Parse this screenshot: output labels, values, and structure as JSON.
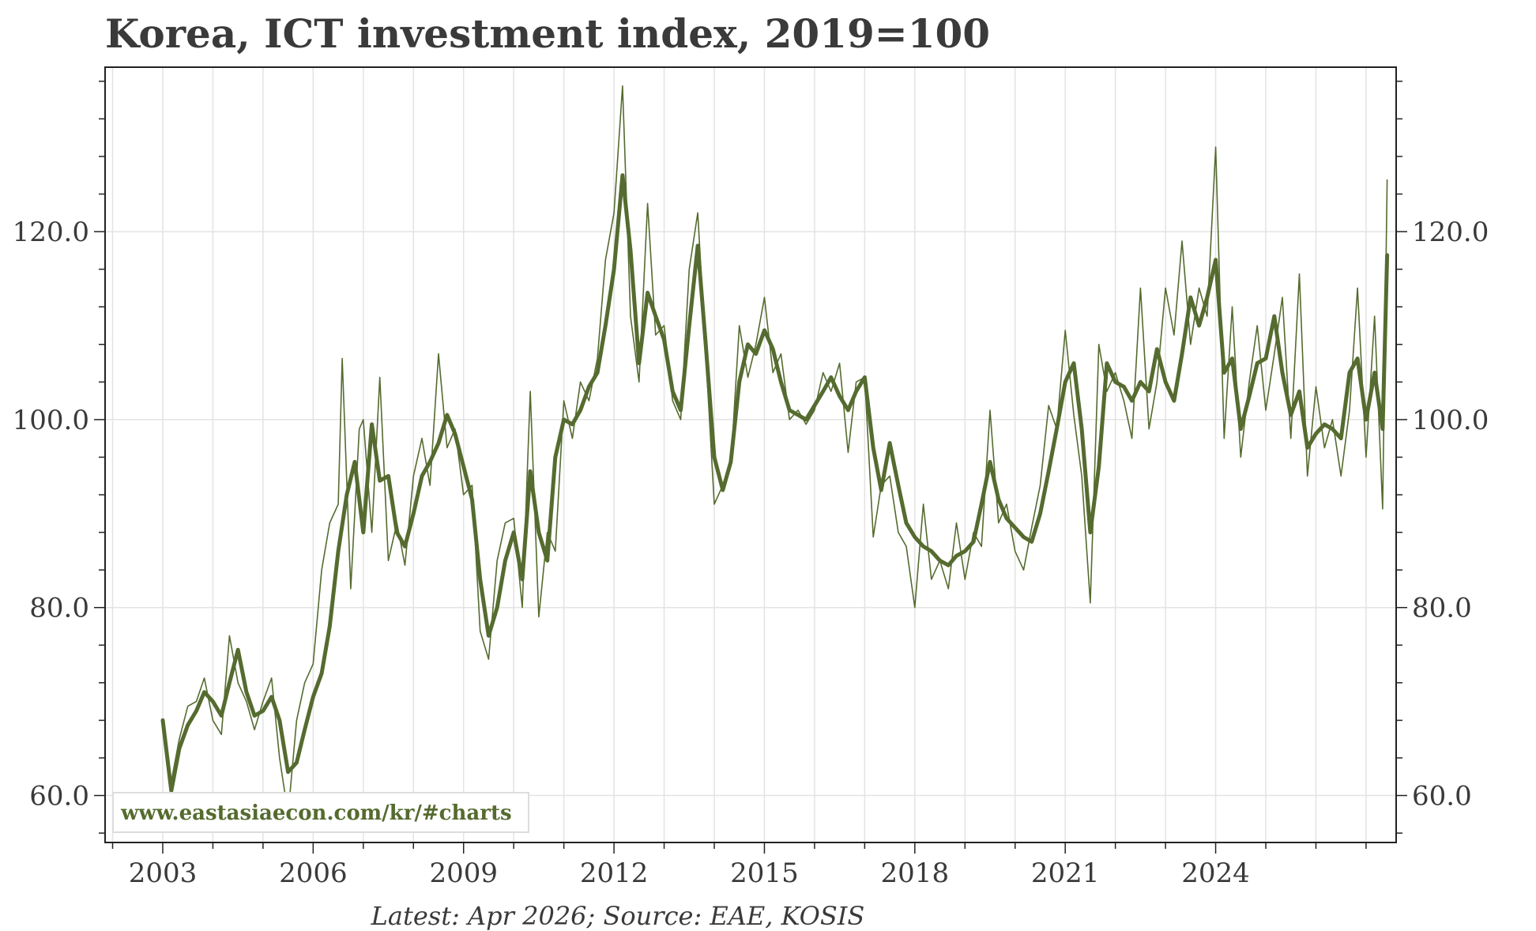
{
  "chart_data": {
    "type": "line",
    "title": "Korea, ICT investment index, 2019=100",
    "source_note": "Latest: Apr 2026; Source: EAE, KOSIS",
    "watermark": "www.eastasiaecon.com/kr/#charts",
    "x_ticks": [
      2003,
      2006,
      2009,
      2012,
      2015,
      2018,
      2021,
      2024
    ],
    "x_tick_labels": [
      "2003",
      "2006",
      "2009",
      "2012",
      "2015",
      "2018",
      "2021",
      "2024"
    ],
    "xlim": [
      2001.85,
      2027.6
    ],
    "ylim": [
      55.0,
      137.5
    ],
    "y_ticks": [
      60,
      80,
      100,
      120
    ],
    "y_tick_labels": [
      "60.0",
      "80.0",
      "100.0",
      "120.0"
    ],
    "grid": true,
    "line_color": "#556b2f",
    "series": [
      {
        "style": "thin",
        "points": [
          [
            2003.0,
            68.0
          ],
          [
            2003.17,
            61.5
          ],
          [
            2003.33,
            66.0
          ],
          [
            2003.5,
            69.5
          ],
          [
            2003.67,
            70.0
          ],
          [
            2003.83,
            72.5
          ],
          [
            2004.0,
            68.0
          ],
          [
            2004.17,
            66.5
          ],
          [
            2004.33,
            77.0
          ],
          [
            2004.5,
            72.0
          ],
          [
            2004.67,
            70.0
          ],
          [
            2004.83,
            67.0
          ],
          [
            2005.0,
            70.0
          ],
          [
            2005.17,
            72.5
          ],
          [
            2005.33,
            64.0
          ],
          [
            2005.5,
            58.0
          ],
          [
            2005.67,
            68.0
          ],
          [
            2005.83,
            72.0
          ],
          [
            2006.0,
            74.0
          ],
          [
            2006.17,
            84.0
          ],
          [
            2006.33,
            89.0
          ],
          [
            2006.5,
            91.0
          ],
          [
            2006.58,
            106.5
          ],
          [
            2006.75,
            82.0
          ],
          [
            2006.92,
            99.0
          ],
          [
            2007.0,
            100.0
          ],
          [
            2007.17,
            88.0
          ],
          [
            2007.33,
            104.5
          ],
          [
            2007.5,
            85.0
          ],
          [
            2007.67,
            89.0
          ],
          [
            2007.83,
            84.5
          ],
          [
            2008.0,
            94.0
          ],
          [
            2008.17,
            98.0
          ],
          [
            2008.33,
            93.0
          ],
          [
            2008.5,
            107.0
          ],
          [
            2008.67,
            97.0
          ],
          [
            2008.83,
            99.0
          ],
          [
            2009.0,
            92.0
          ],
          [
            2009.17,
            93.0
          ],
          [
            2009.33,
            77.5
          ],
          [
            2009.5,
            74.5
          ],
          [
            2009.67,
            85.0
          ],
          [
            2009.83,
            89.0
          ],
          [
            2010.0,
            89.5
          ],
          [
            2010.17,
            80.0
          ],
          [
            2010.33,
            103.0
          ],
          [
            2010.5,
            79.0
          ],
          [
            2010.67,
            88.0
          ],
          [
            2010.83,
            86.0
          ],
          [
            2011.0,
            102.0
          ],
          [
            2011.17,
            98.0
          ],
          [
            2011.33,
            104.0
          ],
          [
            2011.5,
            102.0
          ],
          [
            2011.67,
            106.5
          ],
          [
            2011.83,
            117.0
          ],
          [
            2012.0,
            122.0
          ],
          [
            2012.17,
            135.5
          ],
          [
            2012.33,
            111.0
          ],
          [
            2012.5,
            104.0
          ],
          [
            2012.67,
            123.0
          ],
          [
            2012.83,
            109.0
          ],
          [
            2013.0,
            110.0
          ],
          [
            2013.17,
            102.0
          ],
          [
            2013.33,
            100.0
          ],
          [
            2013.5,
            116.0
          ],
          [
            2013.67,
            122.0
          ],
          [
            2013.83,
            107.0
          ],
          [
            2014.0,
            91.0
          ],
          [
            2014.17,
            93.0
          ],
          [
            2014.33,
            95.0
          ],
          [
            2014.5,
            110.0
          ],
          [
            2014.67,
            104.5
          ],
          [
            2014.83,
            108.0
          ],
          [
            2015.0,
            113.0
          ],
          [
            2015.17,
            105.0
          ],
          [
            2015.33,
            107.0
          ],
          [
            2015.5,
            100.0
          ],
          [
            2015.67,
            101.0
          ],
          [
            2015.83,
            99.5
          ],
          [
            2016.0,
            101.0
          ],
          [
            2016.17,
            105.0
          ],
          [
            2016.33,
            103.0
          ],
          [
            2016.5,
            106.0
          ],
          [
            2016.67,
            96.5
          ],
          [
            2016.83,
            104.0
          ],
          [
            2017.0,
            104.5
          ],
          [
            2017.17,
            87.5
          ],
          [
            2017.33,
            93.0
          ],
          [
            2017.5,
            94.0
          ],
          [
            2017.67,
            88.0
          ],
          [
            2017.83,
            86.5
          ],
          [
            2018.0,
            80.0
          ],
          [
            2018.17,
            91.0
          ],
          [
            2018.33,
            83.0
          ],
          [
            2018.5,
            85.0
          ],
          [
            2018.67,
            82.0
          ],
          [
            2018.83,
            89.0
          ],
          [
            2019.0,
            83.0
          ],
          [
            2019.17,
            88.0
          ],
          [
            2019.33,
            86.5
          ],
          [
            2019.5,
            101.0
          ],
          [
            2019.67,
            89.0
          ],
          [
            2019.83,
            91.0
          ],
          [
            2020.0,
            86.0
          ],
          [
            2020.17,
            84.0
          ],
          [
            2020.33,
            88.5
          ],
          [
            2020.5,
            93.0
          ],
          [
            2020.67,
            101.5
          ],
          [
            2020.83,
            99.0
          ],
          [
            2021.0,
            109.5
          ],
          [
            2021.17,
            100.5
          ],
          [
            2021.33,
            94.0
          ],
          [
            2021.5,
            80.5
          ],
          [
            2021.67,
            108.0
          ],
          [
            2021.83,
            103.0
          ],
          [
            2022.0,
            105.0
          ],
          [
            2022.17,
            102.0
          ],
          [
            2022.33,
            98.0
          ],
          [
            2022.5,
            114.0
          ],
          [
            2022.67,
            99.0
          ],
          [
            2022.83,
            104.0
          ],
          [
            2023.0,
            114.0
          ],
          [
            2023.17,
            109.0
          ],
          [
            2023.33,
            119.0
          ],
          [
            2023.5,
            108.0
          ],
          [
            2023.67,
            114.0
          ],
          [
            2023.83,
            111.0
          ],
          [
            2024.0,
            129.0
          ],
          [
            2024.17,
            98.0
          ],
          [
            2024.33,
            112.0
          ],
          [
            2024.5,
            96.0
          ],
          [
            2024.67,
            104.0
          ],
          [
            2024.83,
            110.0
          ],
          [
            2025.0,
            101.0
          ],
          [
            2025.17,
            107.0
          ],
          [
            2025.33,
            113.0
          ],
          [
            2025.5,
            98.0
          ],
          [
            2025.67,
            115.5
          ],
          [
            2025.83,
            94.0
          ],
          [
            2026.0,
            103.5
          ],
          [
            2026.17,
            97.0
          ],
          [
            2026.33,
            100.0
          ],
          [
            2026.5,
            94.0
          ],
          [
            2026.67,
            101.0
          ],
          [
            2026.83,
            114.0
          ],
          [
            2027.0,
            96.0
          ],
          [
            2027.17,
            111.0
          ],
          [
            2027.33,
            90.5
          ],
          [
            2027.42,
            125.5
          ]
        ]
      },
      {
        "style": "thick",
        "points": [
          [
            2003.0,
            68.0
          ],
          [
            2003.17,
            60.5
          ],
          [
            2003.33,
            65.0
          ],
          [
            2003.5,
            67.5
          ],
          [
            2003.67,
            69.0
          ],
          [
            2003.83,
            71.0
          ],
          [
            2004.0,
            70.0
          ],
          [
            2004.17,
            68.5
          ],
          [
            2004.33,
            72.0
          ],
          [
            2004.5,
            75.5
          ],
          [
            2004.67,
            71.0
          ],
          [
            2004.83,
            68.5
          ],
          [
            2005.0,
            69.0
          ],
          [
            2005.17,
            70.5
          ],
          [
            2005.33,
            68.0
          ],
          [
            2005.5,
            62.5
          ],
          [
            2005.67,
            63.5
          ],
          [
            2005.83,
            67.0
          ],
          [
            2006.0,
            70.5
          ],
          [
            2006.17,
            73.0
          ],
          [
            2006.33,
            78.0
          ],
          [
            2006.5,
            86.0
          ],
          [
            2006.67,
            92.0
          ],
          [
            2006.83,
            95.5
          ],
          [
            2007.0,
            88.0
          ],
          [
            2007.17,
            99.5
          ],
          [
            2007.33,
            93.5
          ],
          [
            2007.5,
            94.0
          ],
          [
            2007.67,
            88.0
          ],
          [
            2007.83,
            86.5
          ],
          [
            2008.0,
            90.0
          ],
          [
            2008.17,
            94.0
          ],
          [
            2008.33,
            95.5
          ],
          [
            2008.5,
            97.5
          ],
          [
            2008.67,
            100.5
          ],
          [
            2008.83,
            98.5
          ],
          [
            2009.0,
            95.0
          ],
          [
            2009.17,
            91.5
          ],
          [
            2009.33,
            83.0
          ],
          [
            2009.5,
            77.0
          ],
          [
            2009.67,
            80.0
          ],
          [
            2009.83,
            85.0
          ],
          [
            2010.0,
            88.0
          ],
          [
            2010.17,
            83.0
          ],
          [
            2010.33,
            94.5
          ],
          [
            2010.5,
            88.0
          ],
          [
            2010.67,
            85.0
          ],
          [
            2010.83,
            96.0
          ],
          [
            2011.0,
            100.0
          ],
          [
            2011.17,
            99.5
          ],
          [
            2011.33,
            101.0
          ],
          [
            2011.5,
            103.5
          ],
          [
            2011.67,
            105.0
          ],
          [
            2011.83,
            110.0
          ],
          [
            2012.0,
            116.0
          ],
          [
            2012.17,
            126.0
          ],
          [
            2012.33,
            118.0
          ],
          [
            2012.5,
            106.0
          ],
          [
            2012.67,
            113.5
          ],
          [
            2012.83,
            111.0
          ],
          [
            2013.0,
            108.5
          ],
          [
            2013.17,
            103.0
          ],
          [
            2013.33,
            101.0
          ],
          [
            2013.5,
            110.0
          ],
          [
            2013.67,
            118.5
          ],
          [
            2013.83,
            108.0
          ],
          [
            2014.0,
            96.0
          ],
          [
            2014.17,
            92.5
          ],
          [
            2014.33,
            95.5
          ],
          [
            2014.5,
            104.0
          ],
          [
            2014.67,
            108.0
          ],
          [
            2014.83,
            107.0
          ],
          [
            2015.0,
            109.5
          ],
          [
            2015.17,
            107.5
          ],
          [
            2015.33,
            104.0
          ],
          [
            2015.5,
            101.0
          ],
          [
            2015.67,
            100.5
          ],
          [
            2015.83,
            100.0
          ],
          [
            2016.0,
            101.5
          ],
          [
            2016.17,
            103.0
          ],
          [
            2016.33,
            104.5
          ],
          [
            2016.5,
            102.5
          ],
          [
            2016.67,
            101.0
          ],
          [
            2016.83,
            103.0
          ],
          [
            2017.0,
            104.5
          ],
          [
            2017.17,
            97.0
          ],
          [
            2017.33,
            92.5
          ],
          [
            2017.5,
            97.5
          ],
          [
            2017.67,
            93.0
          ],
          [
            2017.83,
            89.0
          ],
          [
            2018.0,
            87.5
          ],
          [
            2018.17,
            86.5
          ],
          [
            2018.33,
            86.0
          ],
          [
            2018.5,
            85.0
          ],
          [
            2018.67,
            84.5
          ],
          [
            2018.83,
            85.5
          ],
          [
            2019.0,
            86.0
          ],
          [
            2019.17,
            87.0
          ],
          [
            2019.33,
            91.0
          ],
          [
            2019.5,
            95.5
          ],
          [
            2019.67,
            91.5
          ],
          [
            2019.83,
            89.5
          ],
          [
            2020.0,
            88.5
          ],
          [
            2020.17,
            87.5
          ],
          [
            2020.33,
            87.0
          ],
          [
            2020.5,
            90.0
          ],
          [
            2020.67,
            94.5
          ],
          [
            2020.83,
            99.0
          ],
          [
            2021.0,
            104.0
          ],
          [
            2021.17,
            106.0
          ],
          [
            2021.33,
            99.0
          ],
          [
            2021.5,
            88.0
          ],
          [
            2021.67,
            95.0
          ],
          [
            2021.83,
            106.0
          ],
          [
            2022.0,
            104.0
          ],
          [
            2022.17,
            103.5
          ],
          [
            2022.33,
            102.0
          ],
          [
            2022.5,
            104.0
          ],
          [
            2022.67,
            103.0
          ],
          [
            2022.83,
            107.5
          ],
          [
            2023.0,
            104.0
          ],
          [
            2023.17,
            102.0
          ],
          [
            2023.33,
            107.0
          ],
          [
            2023.5,
            113.0
          ],
          [
            2023.67,
            110.0
          ],
          [
            2023.83,
            113.0
          ],
          [
            2024.0,
            117.0
          ],
          [
            2024.17,
            105.0
          ],
          [
            2024.33,
            106.5
          ],
          [
            2024.5,
            99.0
          ],
          [
            2024.67,
            102.5
          ],
          [
            2024.83,
            106.0
          ],
          [
            2025.0,
            106.5
          ],
          [
            2025.17,
            111.0
          ],
          [
            2025.33,
            105.0
          ],
          [
            2025.5,
            100.5
          ],
          [
            2025.67,
            103.0
          ],
          [
            2025.83,
            97.0
          ],
          [
            2026.0,
            98.5
          ],
          [
            2026.17,
            99.5
          ],
          [
            2026.33,
            99.0
          ],
          [
            2026.5,
            98.0
          ],
          [
            2026.67,
            105.0
          ],
          [
            2026.83,
            106.5
          ],
          [
            2027.0,
            100.0
          ],
          [
            2027.17,
            105.0
          ],
          [
            2027.33,
            99.0
          ],
          [
            2027.42,
            117.5
          ]
        ]
      }
    ]
  }
}
